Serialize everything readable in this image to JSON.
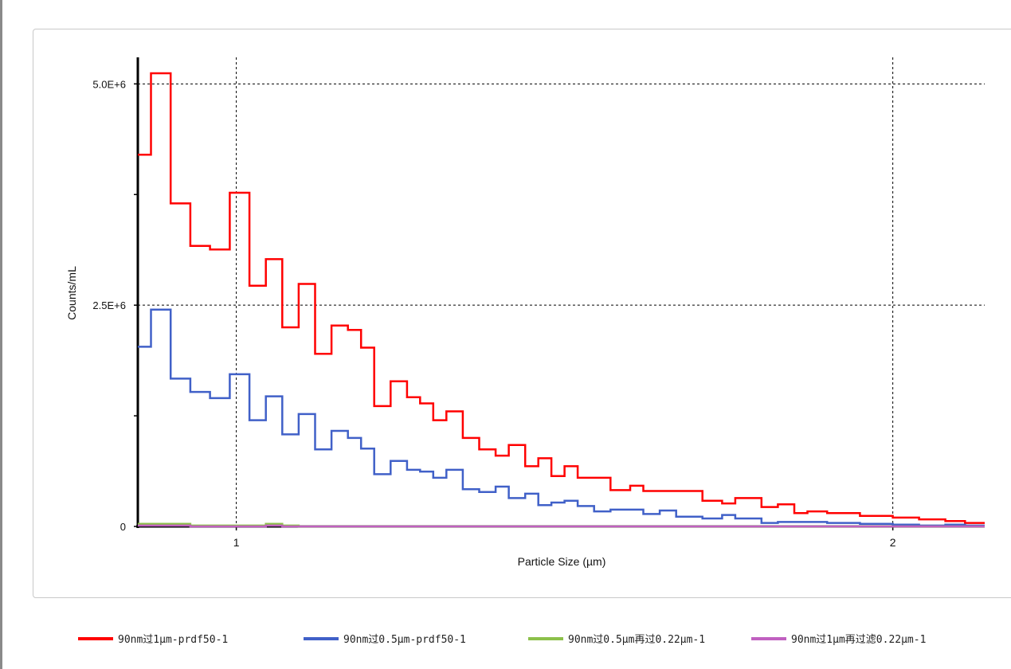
{
  "chart_data": {
    "type": "line",
    "style": "step",
    "title": "",
    "xlabel": "Particle Size (µm)",
    "ylabel": "Counts/mL",
    "x_ticks": [
      1,
      2
    ],
    "x_tick_labels": [
      "1",
      "2"
    ],
    "y_ticks": [
      0,
      2500000,
      5000000
    ],
    "y_tick_labels": [
      "0",
      "2.5E+6",
      "5.0E+6"
    ],
    "xlim": [
      0.85,
      2.14
    ],
    "ylim": [
      0,
      5300000
    ],
    "grid": true,
    "legend_position": "bottom",
    "bin_edges": [
      0.85,
      0.87,
      0.9,
      0.93,
      0.96,
      0.99,
      1.02,
      1.045,
      1.07,
      1.095,
      1.12,
      1.145,
      1.17,
      1.19,
      1.21,
      1.235,
      1.26,
      1.28,
      1.3,
      1.32,
      1.345,
      1.37,
      1.395,
      1.415,
      1.44,
      1.46,
      1.48,
      1.5,
      1.52,
      1.545,
      1.57,
      1.6,
      1.62,
      1.645,
      1.67,
      1.71,
      1.74,
      1.76,
      1.8,
      1.825,
      1.85,
      1.87,
      1.9,
      1.92,
      1.95,
      2.0,
      2.04,
      2.08,
      2.11,
      2.14
    ],
    "series": [
      {
        "name": "90nm过1μm-prdf50-1",
        "color": "#ff0000",
        "values": [
          4200000,
          5120000,
          3650000,
          3170000,
          3130000,
          3770000,
          2720000,
          3020000,
          2250000,
          2740000,
          1950000,
          2270000,
          2220000,
          2020000,
          1360000,
          1640000,
          1460000,
          1390000,
          1200000,
          1300000,
          1000000,
          870000,
          800000,
          920000,
          680000,
          770000,
          570000,
          680000,
          550000,
          550000,
          410000,
          460000,
          400000,
          400000,
          400000,
          290000,
          260000,
          320000,
          220000,
          250000,
          150000,
          170000,
          150000,
          150000,
          120000,
          100000,
          80000,
          60000,
          40000
        ]
      },
      {
        "name": "90nm过0.5μm-prdf50-1",
        "color": "#4060c8",
        "values": [
          2030000,
          2450000,
          1670000,
          1520000,
          1450000,
          1720000,
          1200000,
          1470000,
          1040000,
          1270000,
          870000,
          1080000,
          1000000,
          880000,
          590000,
          740000,
          640000,
          620000,
          550000,
          640000,
          420000,
          390000,
          450000,
          320000,
          370000,
          240000,
          270000,
          290000,
          230000,
          170000,
          190000,
          190000,
          140000,
          180000,
          110000,
          90000,
          130000,
          90000,
          40000,
          50000,
          50000,
          50000,
          40000,
          40000,
          30000,
          20000,
          10000,
          20000,
          10000
        ]
      },
      {
        "name": "90nm过0.5μm再过0.22μm-1",
        "color": "#8cc04a",
        "values": [
          30000,
          30000,
          30000,
          10000,
          10000,
          10000,
          10000,
          30000,
          10000,
          0,
          0,
          0,
          0,
          0,
          0,
          0,
          0,
          0,
          0,
          0,
          0,
          0,
          0,
          0,
          0,
          0,
          0,
          0,
          0,
          0,
          0,
          0,
          0,
          0,
          0,
          0,
          0,
          0,
          0,
          0,
          0,
          0,
          0,
          0,
          0,
          0,
          0,
          0,
          0
        ]
      },
      {
        "name": "90nm过1μm再过滤0.22μm-1",
        "color": "#c060c0",
        "values": [
          10000,
          10000,
          10000,
          0,
          0,
          0,
          0,
          10000,
          0,
          0,
          0,
          0,
          0,
          0,
          0,
          0,
          0,
          0,
          0,
          0,
          0,
          0,
          0,
          0,
          0,
          0,
          0,
          0,
          0,
          0,
          0,
          0,
          0,
          0,
          0,
          0,
          0,
          0,
          0,
          0,
          0,
          0,
          0,
          0,
          0,
          0,
          0,
          0,
          0
        ]
      }
    ]
  }
}
